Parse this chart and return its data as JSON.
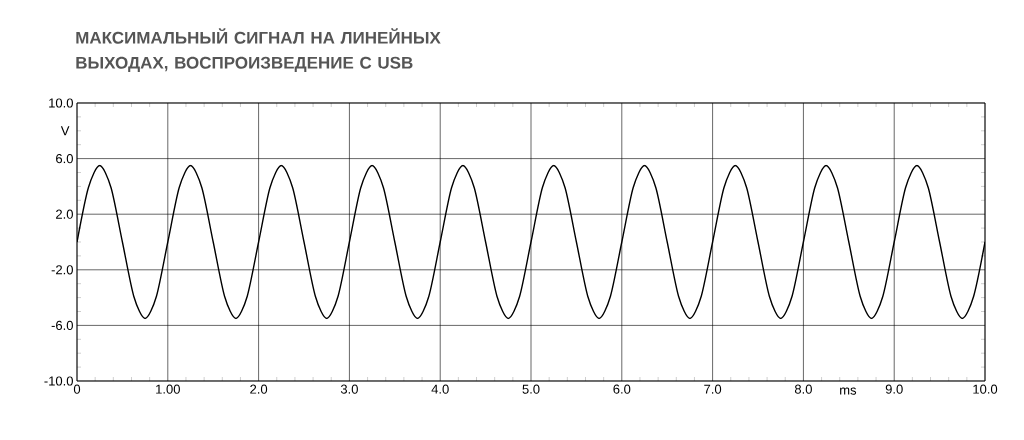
{
  "chart_data": {
    "type": "line",
    "title": "МАКСИМАЛЬНЫЙ СИГНАЛ НА ЛИНЕЙНЫХ ВЫХОДАХ, ВОСПРОИЗВЕДЕНИЕ С USB",
    "xlabel": "ms",
    "ylabel": "V",
    "x": [
      0,
      0.125,
      0.25,
      0.375,
      0.5,
      0.625,
      0.75,
      0.875,
      1,
      1.125,
      1.25,
      1.375,
      1.5,
      1.625,
      1.75,
      1.875,
      2,
      2.125,
      2.25,
      2.375,
      2.5,
      2.625,
      2.75,
      2.875,
      3,
      3.125,
      3.25,
      3.375,
      3.5,
      3.625,
      3.75,
      3.875,
      4,
      4.125,
      4.25,
      4.375,
      4.5,
      4.625,
      4.75,
      4.875,
      5,
      5.125,
      5.25,
      5.375,
      5.5,
      5.625,
      5.75,
      5.875,
      6,
      6.125,
      6.25,
      6.375,
      6.5,
      6.625,
      6.75,
      6.875,
      7,
      7.125,
      7.25,
      7.375,
      7.5,
      7.625,
      7.75,
      7.875,
      8,
      8.125,
      8.25,
      8.375,
      8.5,
      8.625,
      8.75,
      8.875,
      9,
      9.125,
      9.25,
      9.375,
      9.5,
      9.625,
      9.75,
      9.875,
      10
    ],
    "values": [
      0,
      3.9,
      5.5,
      3.9,
      0,
      -3.9,
      -5.5,
      -3.9,
      0,
      3.9,
      5.5,
      3.9,
      0,
      -3.9,
      -5.5,
      -3.9,
      0,
      3.9,
      5.5,
      3.9,
      0,
      -3.9,
      -5.5,
      -3.9,
      0,
      3.9,
      5.5,
      3.9,
      0,
      -3.9,
      -5.5,
      -3.9,
      0,
      3.9,
      5.5,
      3.9,
      0,
      -3.9,
      -5.5,
      -3.9,
      0,
      3.9,
      5.5,
      3.9,
      0,
      -3.9,
      -5.5,
      -3.9,
      0,
      3.9,
      5.5,
      3.9,
      0,
      -3.9,
      -5.5,
      -3.9,
      0,
      3.9,
      5.5,
      3.9,
      0,
      -3.9,
      -5.5,
      -3.9,
      0,
      3.9,
      5.5,
      3.9,
      0,
      -3.9,
      -5.5,
      -3.9,
      0,
      3.9,
      5.5,
      3.9,
      0,
      -3.9,
      -5.5,
      -3.9,
      0
    ],
    "color": "#000000",
    "marker": "none",
    "line_style": "solid",
    "grid": true,
    "xlim": [
      0,
      10
    ],
    "ylim": [
      -10,
      10
    ],
    "xticks": [
      0,
      {
        "value": 1,
        "label": "1.00"
      },
      {
        "value": 2,
        "label": "2.0"
      },
      {
        "value": 3,
        "label": "3.0"
      },
      {
        "value": 4,
        "label": "4.0"
      },
      {
        "value": 5,
        "label": "5.0"
      },
      {
        "value": 6,
        "label": "6.0"
      },
      {
        "value": 7,
        "label": "7.0"
      },
      {
        "value": 8,
        "label": "8.0"
      },
      {
        "value": 9,
        "label": "9.0"
      },
      {
        "value": 10,
        "label": "10.0"
      }
    ],
    "yticks": [
      {
        "value": -10,
        "label": "-10.0"
      },
      {
        "value": -6,
        "label": "-6.0"
      },
      {
        "value": -2,
        "label": "-2.0"
      },
      {
        "value": 2,
        "label": "2.0"
      },
      {
        "value": 6,
        "label": "6.0"
      },
      {
        "value": 10,
        "label": "10.0"
      }
    ]
  }
}
